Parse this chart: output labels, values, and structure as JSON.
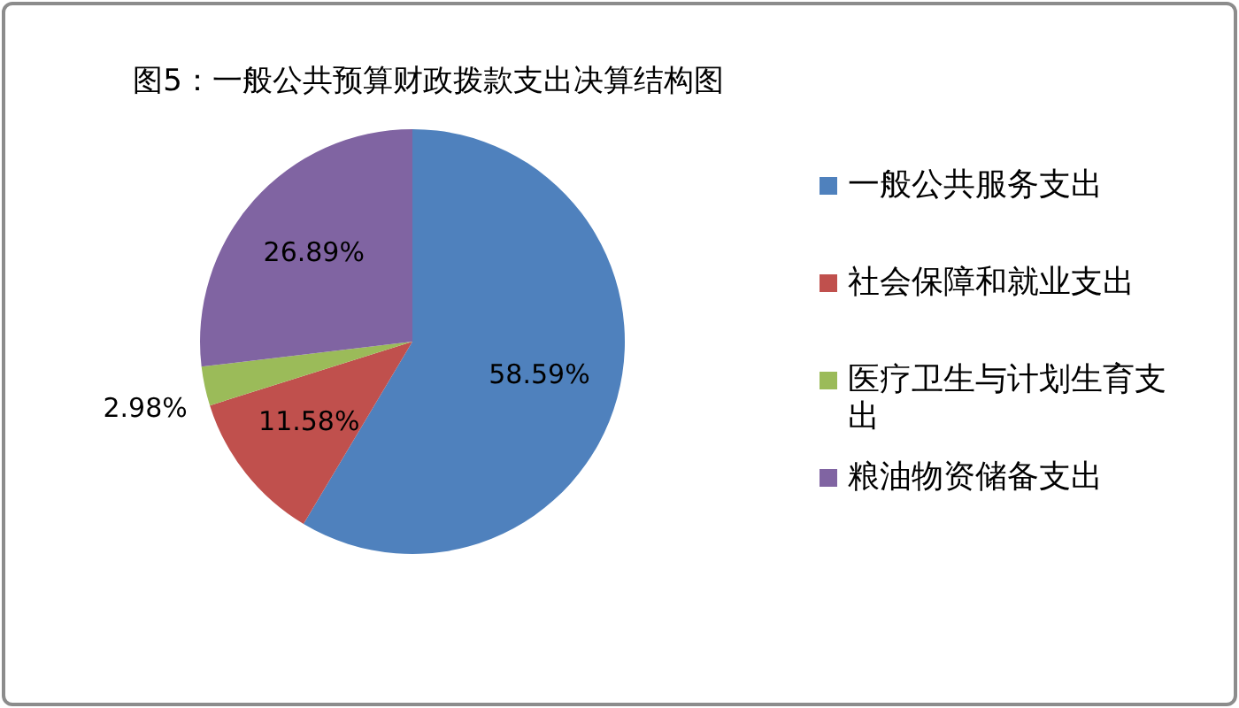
{
  "chart_data": {
    "type": "pie",
    "title": "图5：一般公共预算财政拨款支出决算结构图",
    "categories": [
      "一般公共服务支出",
      "社会保障和就业支出",
      "医疗卫生与计划生育支出",
      "粮油物资储备支出"
    ],
    "values": [
      58.59,
      11.58,
      2.98,
      26.89
    ],
    "colors": [
      "#4f81bd",
      "#c0504d",
      "#9bbb59",
      "#8064a2"
    ],
    "value_labels": [
      "58.59%",
      "11.58%",
      "2.98%",
      "26.89%"
    ],
    "legend": "right"
  }
}
